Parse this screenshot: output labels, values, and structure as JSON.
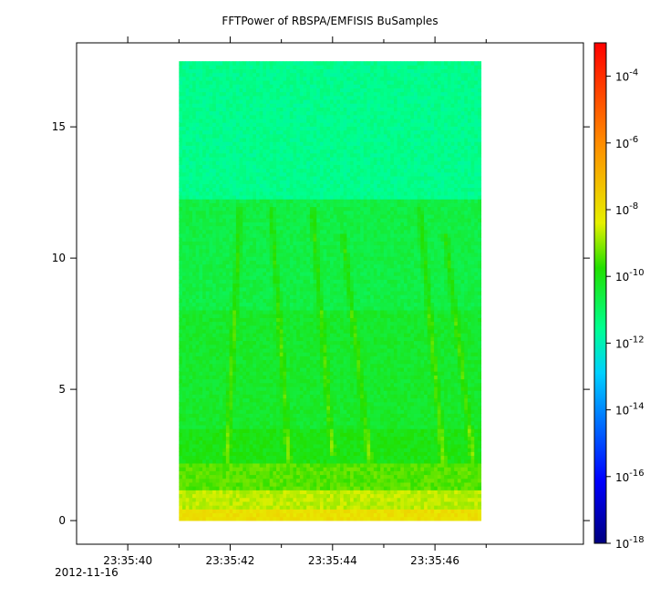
{
  "chart_data": {
    "type": "heatmap",
    "title": "FFTPower of RBSPA/EMFISIS  BuSamples",
    "xlabel": "",
    "ylabel": "",
    "date_label": "2012-11-16",
    "x_range": [
      "23:35:39.0",
      "23:35:48.9"
    ],
    "y_range": [
      -0.9,
      18.2
    ],
    "data_time_range": [
      "23:35:41.0",
      "23:35:46.9"
    ],
    "data_freq_range": [
      0,
      17.5
    ],
    "x_ticks": [
      {
        "value": "23:35:40",
        "label": "23:35:40"
      },
      {
        "value": "23:35:42",
        "label": "23:35:42"
      },
      {
        "value": "23:35:44",
        "label": "23:35:44"
      },
      {
        "value": "23:35:46",
        "label": "23:35:46"
      }
    ],
    "x_minor_ticks": [
      "23:35:41",
      "23:35:43",
      "23:35:45",
      "23:35:47"
    ],
    "y_ticks": [
      0,
      5,
      10,
      15
    ],
    "colorbar": {
      "scale": "log",
      "range": [
        1e-18,
        0.001
      ],
      "tick_exponents": [
        -18,
        -16,
        -14,
        -12,
        -10,
        -8,
        -6,
        -4
      ],
      "tick_base": "10"
    },
    "power_profile": {
      "freq_bands": [
        {
          "from": 0,
          "to": 0.4,
          "log10_power": -8.0
        },
        {
          "from": 0.4,
          "to": 1.2,
          "log10_power": -8.7
        },
        {
          "from": 1.2,
          "to": 2.2,
          "log10_power": -9.4
        },
        {
          "from": 2.2,
          "to": 3.5,
          "log10_power": -10.0
        },
        {
          "from": 3.5,
          "to": 8.0,
          "log10_power": -10.3
        },
        {
          "from": 8.0,
          "to": 12.2,
          "log10_power": -10.6
        },
        {
          "from": 12.2,
          "to": 17.5,
          "log10_power": -11.5
        }
      ]
    },
    "emission_tracks": [
      {
        "t_top": "23:35:42.2",
        "f_top": 12,
        "t_bottom": "23:35:41.9",
        "f_bottom": 1
      },
      {
        "t_top": "23:35:42.8",
        "f_top": 12,
        "t_bottom": "23:35:43.2",
        "f_bottom": 1
      },
      {
        "t_top": "23:35:43.6",
        "f_top": 12,
        "t_bottom": "23:35:44.0",
        "f_bottom": 2.5
      },
      {
        "t_top": "23:35:44.2",
        "f_top": 11,
        "t_bottom": "23:35:44.8",
        "f_bottom": 1
      },
      {
        "t_top": "23:35:45.7",
        "f_top": 12,
        "t_bottom": "23:35:46.2",
        "f_bottom": 1.5
      },
      {
        "t_top": "23:35:46.2",
        "f_top": 11,
        "t_bottom": "23:35:46.8",
        "f_bottom": 1.5
      }
    ]
  }
}
